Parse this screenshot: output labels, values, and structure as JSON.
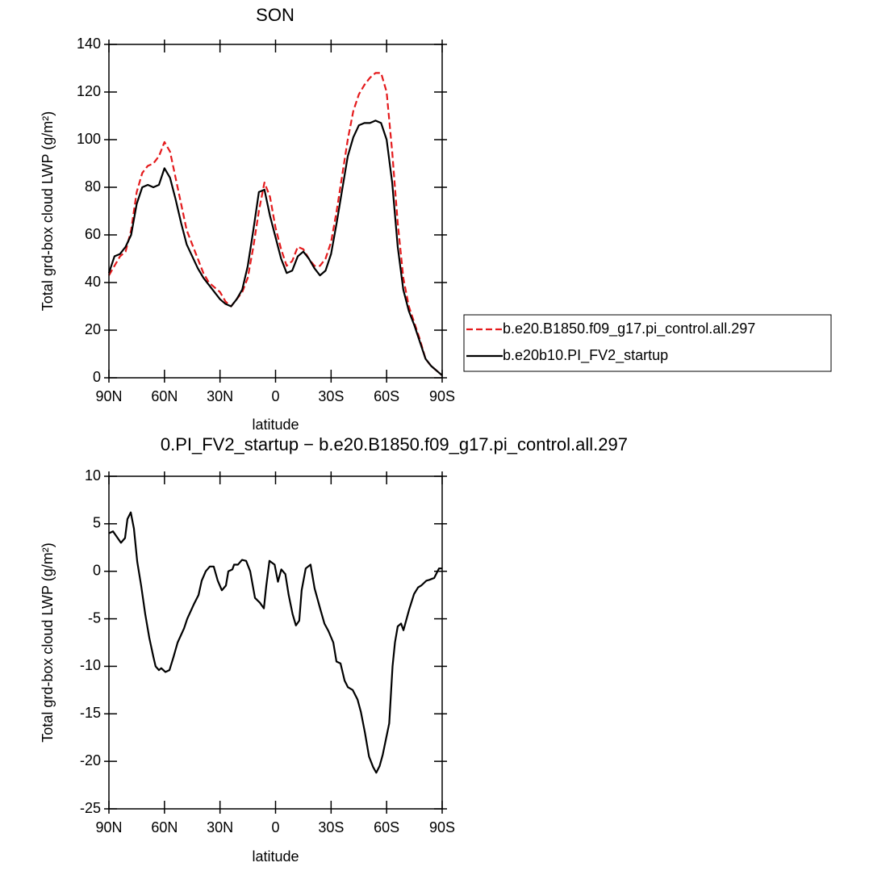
{
  "chart_data": [
    {
      "type": "line",
      "title": "SON",
      "xlabel": "latitude",
      "ylabel": "Total grd-box cloud LWP (g/m²)",
      "x": [
        90,
        87,
        84,
        81,
        78,
        75,
        72,
        69,
        66,
        63,
        60,
        57,
        54,
        51,
        48,
        45,
        42,
        39,
        36,
        33,
        30,
        27,
        24,
        21,
        18,
        15,
        12,
        9,
        6,
        3,
        0,
        -3,
        -6,
        -9,
        -12,
        -15,
        -18,
        -21,
        -24,
        -27,
        -30,
        -33,
        -36,
        -39,
        -42,
        -45,
        -48,
        -51,
        -54,
        -57,
        -60,
        -63,
        -66,
        -69,
        -72,
        -75,
        -78,
        -81,
        -84,
        -87,
        -90
      ],
      "series": [
        {
          "name": "b.e20.B1850.f09_g17.pi_control.all.297",
          "color": "#e41a1c",
          "linestyle": "dashed",
          "values": [
            43,
            47,
            51,
            53,
            62,
            78,
            86,
            89,
            90,
            93,
            99,
            95,
            84,
            73,
            62,
            56,
            50,
            44,
            40,
            38,
            36,
            32,
            30,
            33,
            36,
            42,
            55,
            70,
            82,
            76,
            63,
            54,
            47,
            49,
            55,
            54,
            50,
            47,
            47,
            50,
            57,
            70,
            85,
            100,
            112,
            119,
            123,
            126,
            128,
            128,
            120,
            95,
            65,
            42,
            30,
            23,
            16,
            8,
            5,
            3,
            1
          ]
        },
        {
          "name": "b.e20b10.PI_FV2_startup",
          "color": "#000000",
          "linestyle": "solid",
          "values": [
            44,
            51,
            52,
            55,
            60,
            73,
            80,
            81,
            80,
            81,
            88,
            84,
            75,
            65,
            56,
            51,
            46,
            42,
            39,
            36,
            33,
            31,
            30,
            33,
            37,
            47,
            62,
            78,
            79,
            68,
            59,
            50,
            44,
            45,
            51,
            53,
            50,
            46,
            43,
            45,
            52,
            65,
            79,
            93,
            101,
            106,
            107,
            107,
            108,
            107,
            100,
            82,
            55,
            37,
            28,
            22,
            15,
            8,
            5,
            3,
            1
          ]
        }
      ],
      "xlim": [
        90,
        -90
      ],
      "xticks": [
        {
          "value": 90,
          "label": "90N"
        },
        {
          "value": 60,
          "label": "60N"
        },
        {
          "value": 30,
          "label": "30N"
        },
        0,
        {
          "value": -30,
          "label": "30S"
        },
        {
          "value": -60,
          "label": "60S"
        },
        {
          "value": -90,
          "label": "90S"
        }
      ],
      "ylim": [
        0,
        140
      ],
      "yticks": [
        0,
        20,
        40,
        60,
        80,
        100,
        120,
        140
      ],
      "legend": "right"
    },
    {
      "type": "line",
      "title": "0.PI_FV2_startup − b.e20.B1850.f09_g17.pi_control.all.297",
      "xlabel": "latitude",
      "ylabel": "Total grd-box cloud LWP (g/m²)",
      "x": [
        90,
        87.8,
        83.5,
        81.3,
        80,
        78.2,
        76.5,
        74.7,
        72.6,
        70.4,
        68.2,
        66,
        64.8,
        63,
        61.7,
        59.5,
        57.3,
        55.1,
        52.9,
        49.4,
        47.7,
        44.2,
        41.6,
        39.9,
        37.7,
        35.5,
        33.4,
        31.2,
        29,
        26.8,
        25.5,
        23.3,
        22.4,
        20.3,
        18.1,
        15.9,
        13.7,
        11.1,
        8.5,
        6.3,
        5,
        3.3,
        0.5,
        -1.3,
        -3.1,
        -5.3,
        -7.1,
        -9.2,
        -11,
        -12.8,
        -14.1,
        -16.3,
        -18.9,
        -21.1,
        -24.2,
        -26.4,
        -28.6,
        -31.2,
        -32.9,
        -35.1,
        -37.3,
        -39.1,
        -41.7,
        -44.3,
        -46.1,
        -48.3,
        -50.5,
        -52.7,
        -54.4,
        -56.2,
        -57.9,
        -61.4,
        -63.2,
        -64.5,
        -66,
        -67.8,
        -69.1,
        -72.2,
        -74.8,
        -77,
        -78.7,
        -81.4,
        -83.1,
        -85.7,
        -88.3,
        -90
      ],
      "series": [
        {
          "color": "#000000",
          "linestyle": "solid",
          "values": [
            4,
            4.2,
            3,
            3.5,
            5.5,
            6.2,
            4.5,
            1,
            -1.5,
            -4.5,
            -7,
            -9,
            -10,
            -10.4,
            -10.2,
            -10.6,
            -10.4,
            -9,
            -7.5,
            -6,
            -5,
            -3.5,
            -2.5,
            -1,
            0,
            0.5,
            0.5,
            -1,
            -2,
            -1.5,
            0,
            0.2,
            0.7,
            0.7,
            1.2,
            1.1,
            0,
            -2.8,
            -3.3,
            -3.9,
            -1.5,
            1.1,
            0.7,
            -1.1,
            0.2,
            -0.3,
            -2.5,
            -4.5,
            -5.7,
            -5.2,
            -2,
            0.3,
            0.7,
            -1.8,
            -4,
            -5.5,
            -6.3,
            -7.5,
            -9.5,
            -9.7,
            -11.5,
            -12.2,
            -12.5,
            -13.5,
            -14.8,
            -17,
            -19.5,
            -20.6,
            -21.2,
            -20.5,
            -19.3,
            -16,
            -10,
            -7.5,
            -5.8,
            -5.5,
            -6.2,
            -4,
            -2.4,
            -1.7,
            -1.5,
            -1,
            -0.9,
            -0.7,
            0.3,
            0.3
          ]
        }
      ],
      "xlim": [
        90,
        -90
      ],
      "xticks": [
        {
          "value": 90,
          "label": "90N"
        },
        {
          "value": 60,
          "label": "60N"
        },
        {
          "value": 30,
          "label": "30N"
        },
        0,
        {
          "value": -30,
          "label": "30S"
        },
        {
          "value": -60,
          "label": "60S"
        },
        {
          "value": -90,
          "label": "90S"
        }
      ],
      "ylim": [
        -25,
        10
      ],
      "yticks": [
        -25,
        -20,
        -15,
        -10,
        -5,
        0,
        5,
        10
      ]
    }
  ]
}
